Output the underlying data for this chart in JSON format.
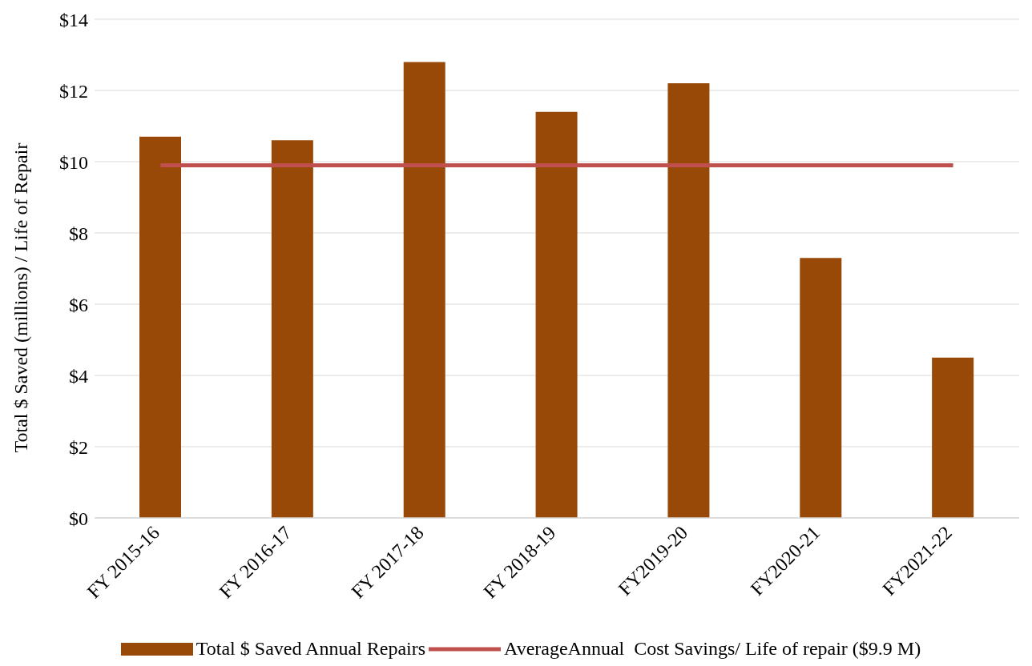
{
  "chart_data": {
    "type": "bar",
    "ylabel": "Total $ Saved (millions)  / Life of Repair",
    "categories": [
      "FY 2015-16",
      "FY 2016-17",
      "FY 2017-18",
      "FY 2018-19",
      "FY2019-20",
      "FY2020-21",
      "FY2021-22"
    ],
    "series": [
      {
        "name": "Total $ Saved Annual Repairs",
        "color": "#984807",
        "values": [
          10.7,
          10.6,
          12.8,
          11.4,
          12.2,
          7.3,
          4.5
        ]
      },
      {
        "name": "AverageAnnual  Cost Savings/ Life of repair ($9.9 M)",
        "type": "line",
        "color": "#c0504d",
        "values": [
          9.9,
          9.9,
          9.9,
          9.9,
          9.9,
          9.9,
          9.9
        ]
      }
    ],
    "ylim": [
      0,
      14
    ],
    "yticks": [
      {
        "value": 0,
        "label": "$0"
      },
      {
        "value": 2,
        "label": "$2"
      },
      {
        "value": 4,
        "label": "$4"
      },
      {
        "value": 6,
        "label": "$6"
      },
      {
        "value": 8,
        "label": "$8"
      },
      {
        "value": 10,
        "label": "$10"
      },
      {
        "value": 12,
        "label": "$12"
      },
      {
        "value": 14,
        "label": "$14"
      }
    ],
    "grid": "y",
    "legend": "bottom",
    "marker": "none"
  }
}
